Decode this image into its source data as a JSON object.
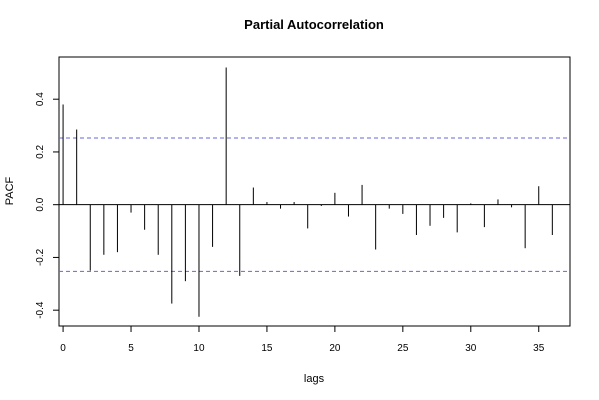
{
  "chart_data": {
    "type": "bar",
    "title": "Partial Autocorrelation",
    "xlabel": "lags",
    "ylabel": "PACF",
    "xlim": [
      -0.3,
      37.3
    ],
    "ylim": [
      -0.46,
      0.56
    ],
    "x_ticks": [
      0,
      5,
      10,
      15,
      20,
      25,
      30,
      35
    ],
    "y_ticks": [
      -0.4,
      -0.2,
      0.0,
      0.2,
      0.4
    ],
    "x_tick_labels": [
      "0",
      "5",
      "10",
      "15",
      "20",
      "25",
      "30",
      "35"
    ],
    "y_tick_labels": [
      "-0.4",
      "-0.2",
      "0.0",
      "0.2",
      "0.4"
    ],
    "confidence_bounds": [
      0.253,
      -0.253
    ],
    "confidence_color": "#6666dd",
    "lags": [
      0,
      1,
      2,
      3,
      4,
      5,
      6,
      7,
      8,
      9,
      10,
      11,
      12,
      13,
      14,
      15,
      16,
      17,
      18,
      19,
      20,
      21,
      22,
      23,
      24,
      25,
      26,
      27,
      28,
      29,
      30,
      31,
      32,
      33,
      34,
      35,
      36
    ],
    "values": [
      0.38,
      0.285,
      -0.25,
      -0.19,
      -0.18,
      -0.03,
      -0.095,
      -0.19,
      -0.375,
      -0.29,
      -0.425,
      -0.16,
      0.52,
      -0.27,
      0.065,
      0.01,
      -0.015,
      0.01,
      -0.09,
      -0.005,
      0.045,
      -0.045,
      0.075,
      -0.17,
      -0.015,
      -0.035,
      -0.115,
      -0.08,
      -0.05,
      -0.105,
      0.005,
      -0.085,
      0.02,
      -0.01,
      -0.165,
      0.07,
      -0.115
    ],
    "grid": false,
    "legend": "none"
  }
}
